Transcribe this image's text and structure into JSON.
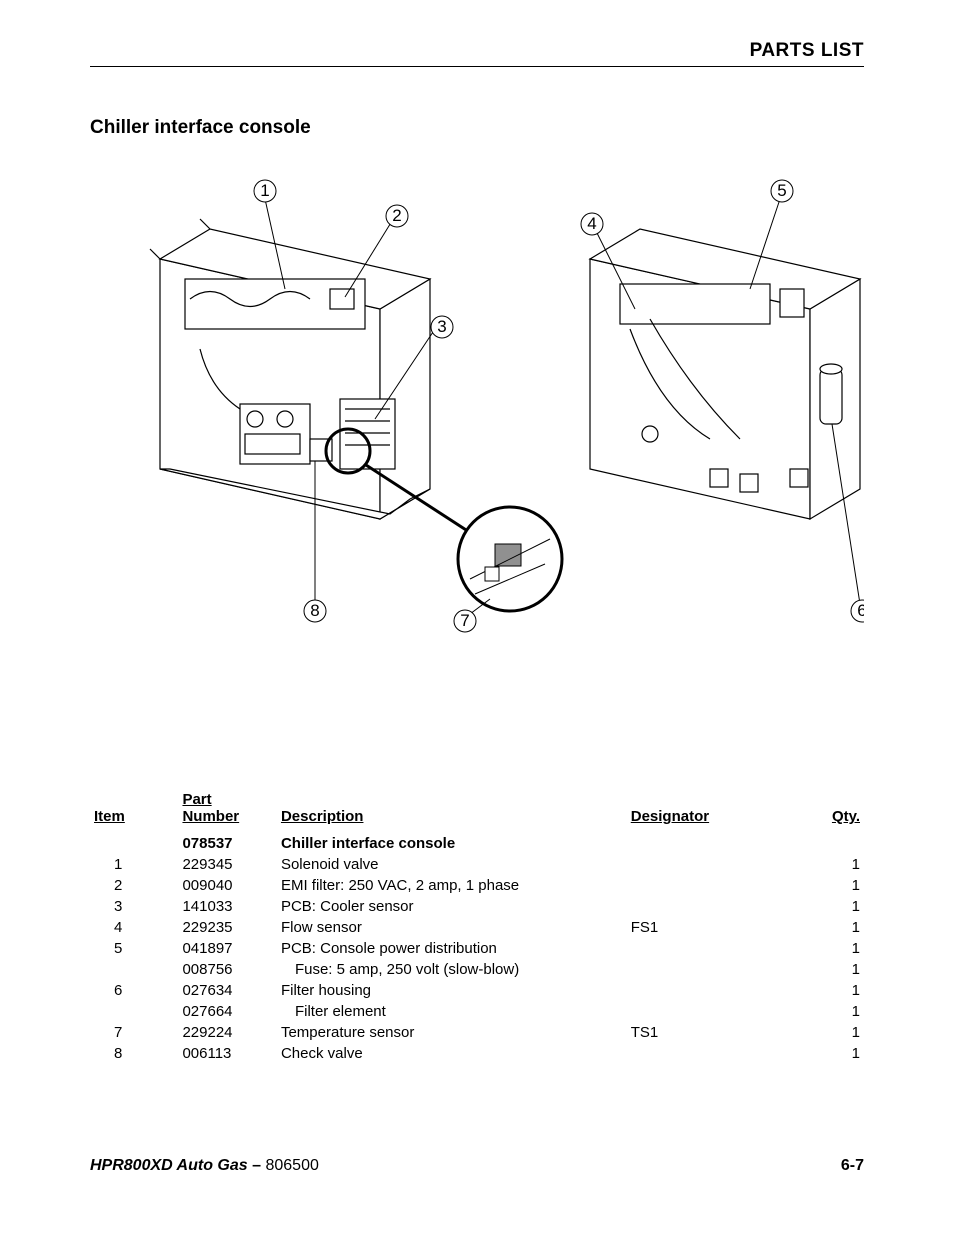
{
  "header": {
    "section_title": "PARTS LIST"
  },
  "page": {
    "section_heading": "Chiller interface console"
  },
  "diagram": {
    "callouts": [
      "1",
      "2",
      "3",
      "4",
      "5",
      "6",
      "7",
      "8"
    ],
    "stroke_color": "#000000",
    "fill_color": "#ffffff",
    "callout_radius": 11,
    "detail_circle_stroke_width": 3,
    "line_stroke_width": 1
  },
  "table": {
    "headers": {
      "item": "Item",
      "part_number_line1": "Part",
      "part_number_line2": "Number",
      "description": "Description",
      "designator": "Designator",
      "qty": "Qty."
    },
    "rows": [
      {
        "item": "",
        "part": "078537",
        "desc": "Chiller interface console",
        "desig": "",
        "qty": "",
        "bold": true,
        "indent": 0
      },
      {
        "item": "1",
        "part": "229345",
        "desc": "Solenoid valve",
        "desig": "",
        "qty": "1",
        "bold": false,
        "indent": 0
      },
      {
        "item": "2",
        "part": "009040",
        "desc": "EMI filter: 250 VAC, 2 amp, 1 phase",
        "desig": "",
        "qty": "1",
        "bold": false,
        "indent": 0
      },
      {
        "item": "3",
        "part": "141033",
        "desc": "PCB: Cooler sensor",
        "desig": "",
        "qty": "1",
        "bold": false,
        "indent": 0
      },
      {
        "item": "4",
        "part": "229235",
        "desc": "Flow sensor",
        "desig": "FS1",
        "qty": "1",
        "bold": false,
        "indent": 0
      },
      {
        "item": "5",
        "part": "041897",
        "desc": "PCB: Console power distribution",
        "desig": "",
        "qty": "1",
        "bold": false,
        "indent": 0
      },
      {
        "item": "",
        "part": "008756",
        "desc": "Fuse: 5 amp, 250 volt (slow-blow)",
        "desig": "",
        "qty": "1",
        "bold": false,
        "indent": 1
      },
      {
        "item": "6",
        "part": "027634",
        "desc": "Filter housing",
        "desig": "",
        "qty": "1",
        "bold": false,
        "indent": 0
      },
      {
        "item": "",
        "part": "027664",
        "desc": "Filter element",
        "desig": "",
        "qty": "1",
        "bold": false,
        "indent": 1
      },
      {
        "item": "7",
        "part": "229224",
        "desc": "Temperature sensor",
        "desig": "TS1",
        "qty": "1",
        "bold": false,
        "indent": 0
      },
      {
        "item": "8",
        "part": "006113",
        "desc": "Check valve",
        "desig": "",
        "qty": "1",
        "bold": false,
        "indent": 0
      }
    ]
  },
  "footer": {
    "product": "HPR800XD Auto Gas",
    "dash": " – ",
    "doc_number": "806500",
    "page_number": "6-7"
  }
}
